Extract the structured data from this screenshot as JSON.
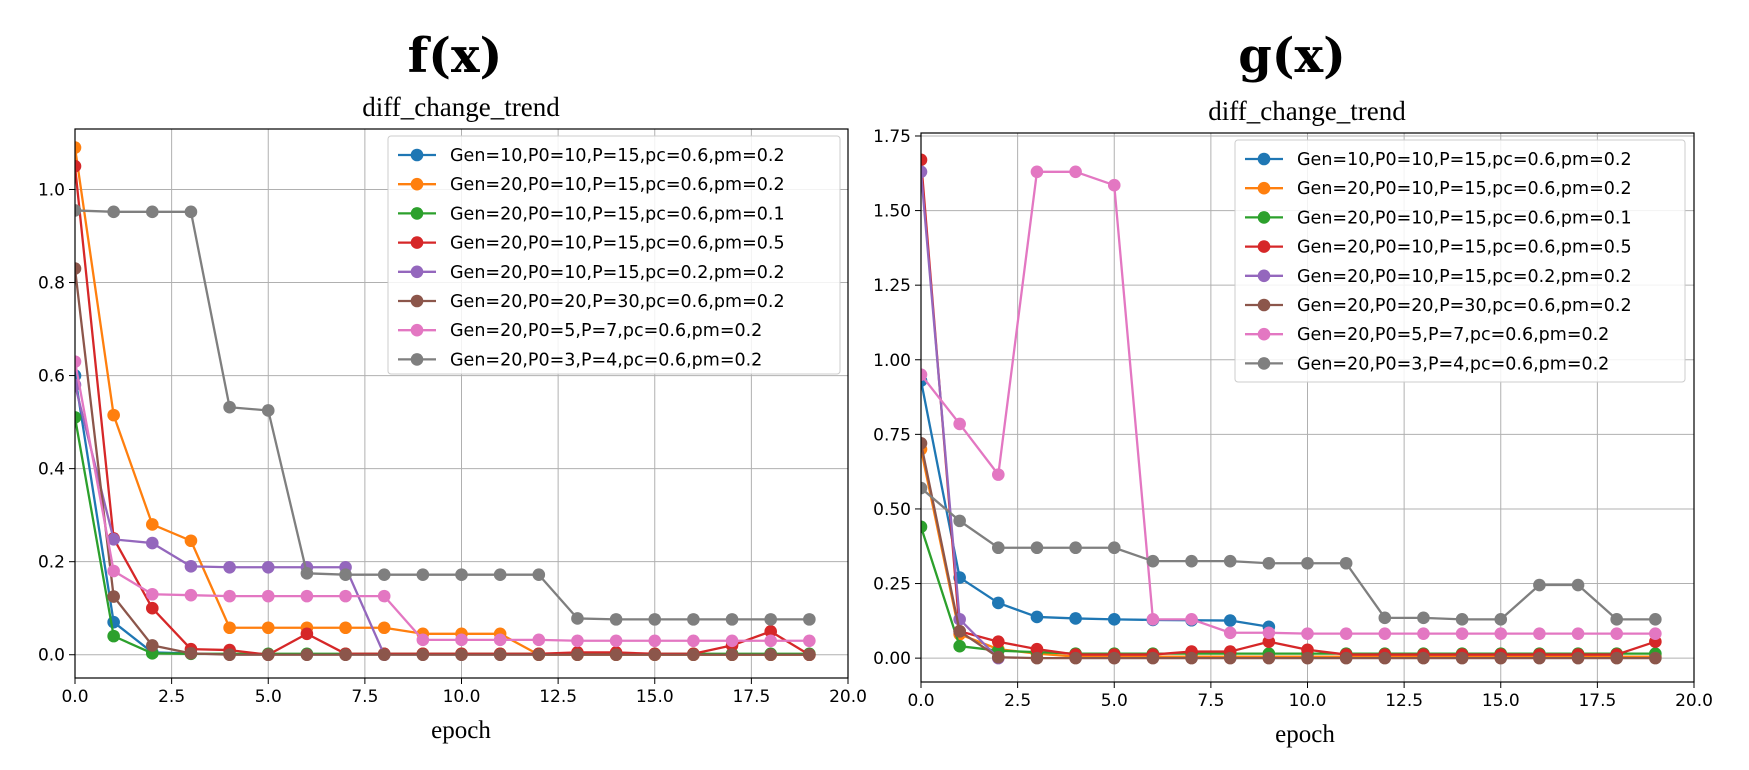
{
  "chart_data": [
    {
      "type": "line",
      "title": "f(x)",
      "subtitle": "diff_change_trend",
      "xlabel": "epoch",
      "ylabel": "",
      "xlim": [
        0,
        20
      ],
      "ylim": [
        -0.05,
        1.13
      ],
      "xticks": [
        "0.0",
        "2.5",
        "5.0",
        "7.5",
        "10.0",
        "12.5",
        "15.0",
        "17.5",
        "20.0"
      ],
      "yticks": [
        "0.0",
        "0.2",
        "0.4",
        "0.6",
        "0.8",
        "1.0"
      ],
      "grid": true,
      "legend_position": "upper-right",
      "x": [
        0,
        1,
        2,
        3,
        4,
        5,
        6,
        7,
        8,
        9,
        10,
        11,
        12,
        13,
        14,
        15,
        16,
        17,
        18,
        19
      ],
      "series": [
        {
          "name": "Gen=10,P0=10,P=15,pc=0.6,pm=0.2",
          "color": "#1f77b4",
          "x": [
            0,
            1,
            2,
            3
          ],
          "values": [
            0.6,
            0.07,
            0.005,
            0.003
          ]
        },
        {
          "name": "Gen=20,P0=10,P=15,pc=0.6,pm=0.2",
          "color": "#ff7f0e",
          "values": [
            1.09,
            0.515,
            0.28,
            0.245,
            0.058,
            0.058,
            0.058,
            0.058,
            0.058,
            0.045,
            0.045,
            0.045,
            0.0,
            0.0,
            0.0,
            0.0,
            0.0,
            0.0,
            0.0,
            0.0
          ]
        },
        {
          "name": "Gen=20,P0=10,P=15,pc=0.6,pm=0.1",
          "color": "#2ca02c",
          "values": [
            0.51,
            0.04,
            0.003,
            0.002,
            0.002,
            0.002,
            0.002,
            0.002,
            0.002,
            0.002,
            0.002,
            0.002,
            0.002,
            0.002,
            0.002,
            0.002,
            0.002,
            0.002,
            0.002,
            0.002
          ]
        },
        {
          "name": "Gen=20,P0=10,P=15,pc=0.6,pm=0.5",
          "color": "#d62728",
          "values": [
            1.05,
            0.25,
            0.1,
            0.012,
            0.01,
            0.0,
            0.045,
            0.002,
            0.002,
            0.002,
            0.002,
            0.002,
            0.002,
            0.005,
            0.005,
            0.002,
            0.002,
            0.02,
            0.05,
            0.0
          ]
        },
        {
          "name": "Gen=20,P0=10,P=15,pc=0.2,pm=0.2",
          "color": "#9467bd",
          "x": [
            0,
            1,
            2,
            3,
            4,
            5,
            6,
            7,
            8
          ],
          "values": [
            0.58,
            0.248,
            0.24,
            0.19,
            0.188,
            0.188,
            0.188,
            0.188,
            0.0
          ]
        },
        {
          "name": "Gen=20,P0=20,P=30,pc=0.6,pm=0.2",
          "color": "#8c564b",
          "values": [
            0.83,
            0.125,
            0.02,
            0.003,
            0.0,
            0.0,
            0.0,
            0.0,
            0.0,
            0.0,
            0.0,
            0.0,
            0.0,
            0.0,
            0.0,
            0.0,
            0.0,
            0.0,
            0.0,
            0.0
          ]
        },
        {
          "name": "Gen=20,P0=5,P=7,pc=0.6,pm=0.2",
          "color": "#e377c2",
          "values": [
            0.63,
            0.18,
            0.13,
            0.128,
            0.126,
            0.126,
            0.126,
            0.126,
            0.126,
            0.032,
            0.032,
            0.032,
            0.032,
            0.03,
            0.03,
            0.03,
            0.03,
            0.03,
            0.03,
            0.03
          ]
        },
        {
          "name": "Gen=20,P0=3,P=4,pc=0.6,pm=0.2",
          "color": "#7f7f7f",
          "values": [
            0.955,
            0.952,
            0.952,
            0.952,
            0.532,
            0.525,
            0.175,
            0.172,
            0.172,
            0.172,
            0.172,
            0.172,
            0.172,
            0.078,
            0.076,
            0.076,
            0.076,
            0.076,
            0.076,
            0.076
          ]
        }
      ]
    },
    {
      "type": "line",
      "title": "g(x)",
      "subtitle": "diff_change_trend",
      "xlabel": "epoch",
      "ylabel": "",
      "xlim": [
        0,
        20
      ],
      "ylim": [
        -0.08,
        1.76
      ],
      "xticks": [
        "0.0",
        "2.5",
        "5.0",
        "7.5",
        "10.0",
        "12.5",
        "15.0",
        "17.5",
        "20.0"
      ],
      "yticks": [
        "0.00",
        "0.25",
        "0.50",
        "0.75",
        "1.00",
        "1.25",
        "1.50",
        "1.75"
      ],
      "grid": true,
      "legend_position": "upper-right",
      "x": [
        0,
        1,
        2,
        3,
        4,
        5,
        6,
        7,
        8,
        9,
        10,
        11,
        12,
        13,
        14,
        15,
        16,
        17,
        18,
        19
      ],
      "series": [
        {
          "name": "Gen=10,P0=10,P=15,pc=0.6,pm=0.2",
          "color": "#1f77b4",
          "x": [
            0,
            1,
            2,
            3,
            4,
            5,
            6,
            7,
            8,
            9
          ],
          "values": [
            0.93,
            0.27,
            0.185,
            0.138,
            0.133,
            0.13,
            0.128,
            0.127,
            0.126,
            0.105
          ]
        },
        {
          "name": "Gen=20,P0=10,P=15,pc=0.6,pm=0.2",
          "color": "#ff7f0e",
          "values": [
            0.7,
            0.08,
            0.03,
            0.015,
            0.005,
            0.005,
            0.005,
            0.005,
            0.005,
            0.005,
            0.005,
            0.005,
            0.005,
            0.005,
            0.005,
            0.005,
            0.005,
            0.005,
            0.005,
            0.005
          ]
        },
        {
          "name": "Gen=20,P0=10,P=15,pc=0.6,pm=0.1",
          "color": "#2ca02c",
          "values": [
            0.44,
            0.04,
            0.025,
            0.02,
            0.015,
            0.015,
            0.015,
            0.015,
            0.015,
            0.015,
            0.015,
            0.015,
            0.015,
            0.015,
            0.015,
            0.015,
            0.015,
            0.015,
            0.015,
            0.015
          ]
        },
        {
          "name": "Gen=20,P0=10,P=15,pc=0.6,pm=0.5",
          "color": "#d62728",
          "values": [
            1.67,
            0.09,
            0.055,
            0.03,
            0.012,
            0.012,
            0.012,
            0.022,
            0.022,
            0.055,
            0.028,
            0.012,
            0.012,
            0.012,
            0.012,
            0.012,
            0.012,
            0.012,
            0.012,
            0.055
          ]
        },
        {
          "name": "Gen=20,P0=10,P=15,pc=0.2,pm=0.2",
          "color": "#9467bd",
          "x": [
            0,
            1,
            2
          ],
          "values": [
            1.63,
            0.13,
            0.0
          ]
        },
        {
          "name": "Gen=20,P0=20,P=30,pc=0.6,pm=0.2",
          "color": "#8c564b",
          "values": [
            0.72,
            0.09,
            0.003,
            0.0,
            0.0,
            0.0,
            0.0,
            0.0,
            0.0,
            0.0,
            0.0,
            0.0,
            0.0,
            0.0,
            0.0,
            0.0,
            0.0,
            0.0,
            0.0,
            0.0
          ]
        },
        {
          "name": "Gen=20,P0=5,P=7,pc=0.6,pm=0.2",
          "color": "#e377c2",
          "values": [
            0.95,
            0.785,
            0.615,
            1.63,
            1.63,
            1.585,
            0.13,
            0.13,
            0.085,
            0.085,
            0.082,
            0.082,
            0.082,
            0.082,
            0.082,
            0.082,
            0.082,
            0.082,
            0.082,
            0.082
          ]
        },
        {
          "name": "Gen=20,P0=3,P=4,pc=0.6,pm=0.2",
          "color": "#7f7f7f",
          "values": [
            0.57,
            0.46,
            0.37,
            0.37,
            0.37,
            0.37,
            0.325,
            0.325,
            0.325,
            0.318,
            0.318,
            0.318,
            0.135,
            0.135,
            0.13,
            0.13,
            0.245,
            0.245,
            0.13,
            0.13
          ]
        }
      ]
    }
  ]
}
